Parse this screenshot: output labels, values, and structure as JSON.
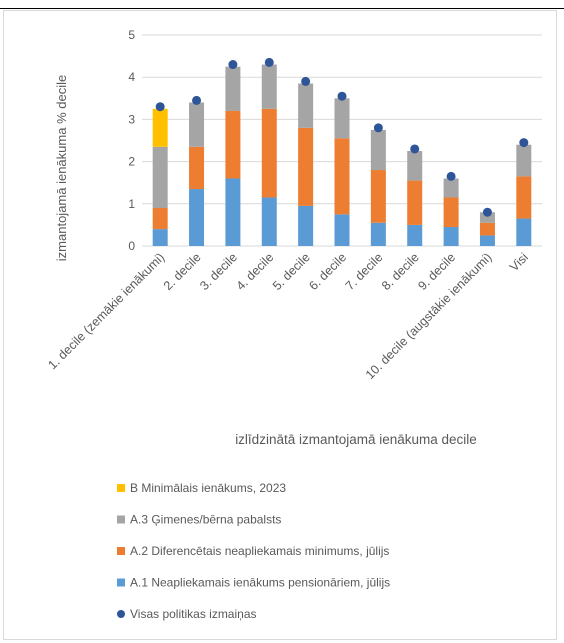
{
  "chart_data": {
    "type": "bar",
    "stacked": true,
    "title": "",
    "ylabel": "izmantojamā ienākuma % decile",
    "xlabel": "izlīdzinātā izmantojamā ienākuma decile",
    "ylim": [
      0,
      5
    ],
    "yticks": [
      "0",
      "1",
      "2",
      "3",
      "4",
      "5"
    ],
    "grid": true,
    "legend_position": "bottom",
    "categories": [
      "1. decile (zemākie ienākumi)",
      "2. decile",
      "3. decile",
      "4. decile",
      "5. decile",
      "6. decile",
      "7. decile",
      "8. decile",
      "9. decile",
      "10. decile (augstākie ienākumi)",
      "Visi"
    ],
    "series": [
      {
        "name": "A.1 Neapliekamais ienākums pensionāriem, jūlijs",
        "color": "#5b9bd5",
        "values": [
          0.4,
          1.35,
          1.6,
          1.15,
          0.95,
          0.75,
          0.55,
          0.5,
          0.45,
          0.25,
          0.65
        ]
      },
      {
        "name": "A.2 Diferencētais neapliekamais minimums, jūlijs",
        "color": "#ed7d31",
        "values": [
          0.5,
          1.0,
          1.6,
          2.1,
          1.85,
          1.8,
          1.25,
          1.05,
          0.7,
          0.3,
          1.0
        ]
      },
      {
        "name": "A.3 Ģimenes/bērna pabalsts",
        "color": "#a5a5a5",
        "values": [
          1.45,
          1.05,
          1.05,
          1.05,
          1.05,
          0.95,
          0.95,
          0.7,
          0.45,
          0.25,
          0.75
        ]
      },
      {
        "name": "B Minimālais ienākums, 2023",
        "color": "#ffc000",
        "values": [
          0.9,
          0.0,
          0.0,
          0.0,
          0.0,
          0.0,
          0.0,
          0.0,
          0.0,
          0.0,
          0.0
        ]
      }
    ],
    "total_series": {
      "name": "Visas politikas izmaiņas",
      "color": "#2e5597",
      "values": [
        3.3,
        3.45,
        4.3,
        4.35,
        3.9,
        3.55,
        2.8,
        2.3,
        1.65,
        0.8,
        2.45
      ]
    },
    "legend": [
      {
        "label": "B Minimālais ienākums, 2023",
        "marker": "square",
        "color": "#ffc000"
      },
      {
        "label": "A.3 Ģimenes/bērna pabalsts",
        "marker": "square",
        "color": "#a5a5a5"
      },
      {
        "label": "A.2 Diferencētais neapliekamais minimums, jūlijs",
        "marker": "square",
        "color": "#ed7d31"
      },
      {
        "label": "A.1 Neapliekamais ienākums pensionāriem, jūlijs",
        "marker": "square",
        "color": "#5b9bd5"
      },
      {
        "label": "Visas politikas izmaiņas",
        "marker": "circle",
        "color": "#2e5597"
      }
    ]
  }
}
